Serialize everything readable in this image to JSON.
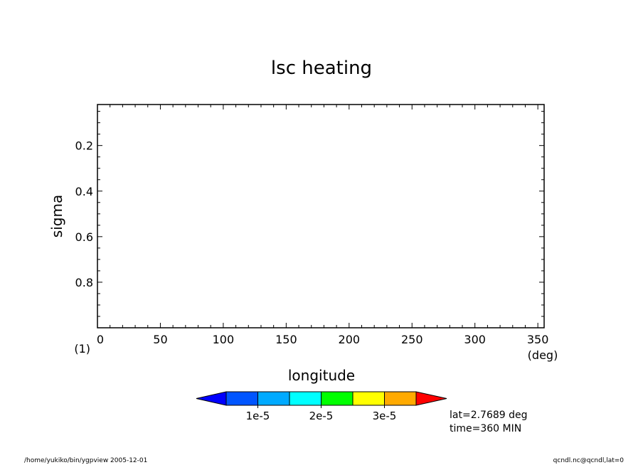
{
  "chart_data": {
    "type": "contour",
    "title": "lsc heating",
    "xlabel": "longitude",
    "xunit": "(deg)",
    "ylabel": "sigma",
    "x_ticks": [
      "0",
      "50",
      "100",
      "150",
      "200",
      "250",
      "300",
      "350"
    ],
    "xlim": [
      0,
      355
    ],
    "y_ticks": [
      "0.2",
      "0.4",
      "0.6",
      "0.8"
    ],
    "ylim": [
      1.0,
      0.02
    ],
    "y_reversed": true,
    "level_marker": "(1)",
    "series": [],
    "colorbar": {
      "colors": [
        "#0000ff",
        "#0055ff",
        "#00aaff",
        "#00ffff",
        "#00ff00",
        "#ffff00",
        "#ffaa00",
        "#ff0000"
      ],
      "labels": [
        "1e-5",
        "2e-5",
        "3e-5"
      ]
    },
    "annotations": [
      "lat=2.7689 deg",
      "time=360 MIN"
    ],
    "footer_left": "/home/yukiko/bin/ygpview  2005-12-01",
    "footer_right": "qcndl.nc@qcndl,lat=0"
  }
}
